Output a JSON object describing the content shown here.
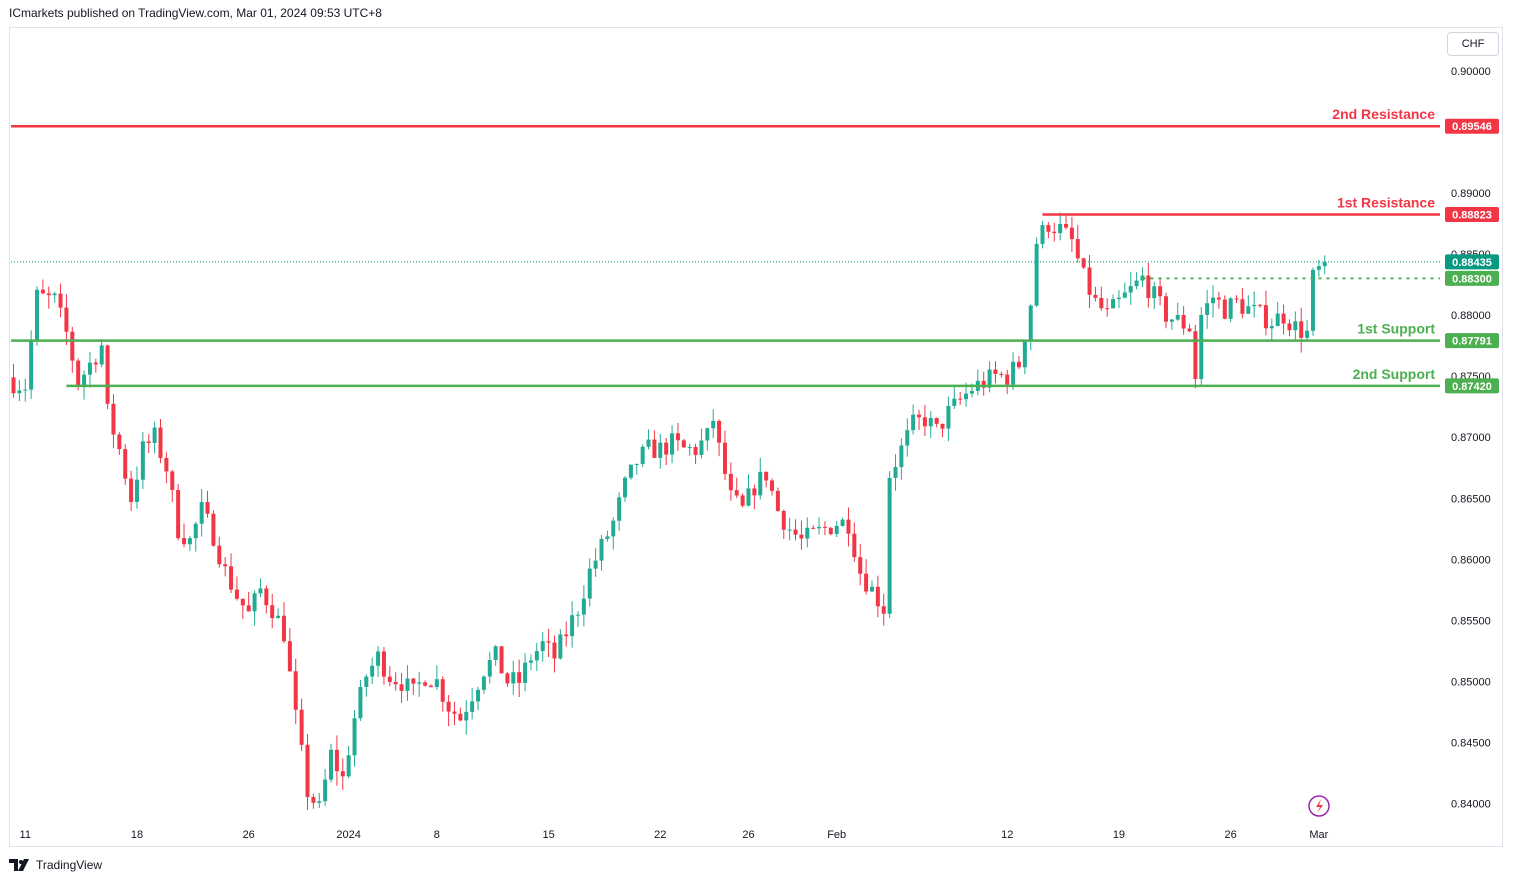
{
  "header": {
    "text": "ICmarkets published on TradingView.com, Mar 01, 2024 09:53 UTC+8"
  },
  "currency": "CHF",
  "footer": {
    "brand": "TradingView"
  },
  "colors": {
    "up": "#22ab94",
    "down": "#f23645",
    "resistance": "#f23645",
    "support": "#4caf50",
    "current": "#089981"
  },
  "chart_data": {
    "type": "candlestick",
    "x_ticks": [
      {
        "label": "11",
        "index": 2
      },
      {
        "label": "18",
        "index": 21
      },
      {
        "label": "26",
        "index": 40
      },
      {
        "label": "2024",
        "index": 57
      },
      {
        "label": "8",
        "index": 72
      },
      {
        "label": "15",
        "index": 91
      },
      {
        "label": "22",
        "index": 110
      },
      {
        "label": "26",
        "index": 125
      },
      {
        "label": "Feb",
        "index": 140
      },
      {
        "label": "12",
        "index": 169
      },
      {
        "label": "19",
        "index": 188
      },
      {
        "label": "26",
        "index": 207
      },
      {
        "label": "Mar",
        "index": 222
      }
    ],
    "y_ticks": [
      "0.90000",
      "0.89000",
      "0.88500",
      "0.88000",
      "0.87500",
      "0.87000",
      "0.86500",
      "0.86000",
      "0.85500",
      "0.85000",
      "0.84500",
      "0.84000"
    ],
    "y_range": [
      0.8385,
      0.9035
    ],
    "levels": [
      {
        "name": "2nd Resistance",
        "value": "0.89546",
        "kind": "resistance"
      },
      {
        "name": "1st Resistance",
        "value": "0.88823",
        "kind": "resistance"
      },
      {
        "name": "1st Support",
        "value": "0.87791",
        "kind": "support"
      },
      {
        "name": "2nd Support",
        "value": "0.87420",
        "kind": "support"
      }
    ],
    "current_price": "0.88435",
    "pivot_price": "0.88300",
    "anchors": [
      [
        0,
        0.8745
      ],
      [
        2,
        0.8742
      ],
      [
        4,
        0.8815
      ],
      [
        7,
        0.8812
      ],
      [
        9,
        0.8785
      ],
      [
        11,
        0.8745
      ],
      [
        13,
        0.876
      ],
      [
        15,
        0.8775
      ],
      [
        16,
        0.872
      ],
      [
        18,
        0.869
      ],
      [
        20,
        0.865
      ],
      [
        22,
        0.869
      ],
      [
        24,
        0.87
      ],
      [
        26,
        0.8675
      ],
      [
        28,
        0.8625
      ],
      [
        30,
        0.8615
      ],
      [
        32,
        0.864
      ],
      [
        34,
        0.862
      ],
      [
        36,
        0.859
      ],
      [
        38,
        0.857
      ],
      [
        40,
        0.8555
      ],
      [
        42,
        0.8575
      ],
      [
        44,
        0.856
      ],
      [
        46,
        0.854
      ],
      [
        48,
        0.847
      ],
      [
        50,
        0.841
      ],
      [
        52,
        0.8395
      ],
      [
        54,
        0.844
      ],
      [
        56,
        0.842
      ],
      [
        58,
        0.847
      ],
      [
        60,
        0.8505
      ],
      [
        62,
        0.852
      ],
      [
        64,
        0.8505
      ],
      [
        66,
        0.85
      ],
      [
        68,
        0.849
      ],
      [
        70,
        0.8505
      ],
      [
        72,
        0.85
      ],
      [
        74,
        0.848
      ],
      [
        76,
        0.847
      ],
      [
        78,
        0.849
      ],
      [
        80,
        0.851
      ],
      [
        82,
        0.852
      ],
      [
        84,
        0.85
      ],
      [
        86,
        0.85
      ],
      [
        88,
        0.852
      ],
      [
        90,
        0.853
      ],
      [
        92,
        0.852
      ],
      [
        94,
        0.854
      ],
      [
        96,
        0.856
      ],
      [
        98,
        0.859
      ],
      [
        100,
        0.861
      ],
      [
        102,
        0.863
      ],
      [
        104,
        0.866
      ],
      [
        106,
        0.868
      ],
      [
        108,
        0.869
      ],
      [
        110,
        0.869
      ],
      [
        112,
        0.8695
      ],
      [
        114,
        0.869
      ],
      [
        116,
        0.869
      ],
      [
        118,
        0.87
      ],
      [
        119,
        0.8715
      ],
      [
        120,
        0.869
      ],
      [
        122,
        0.865
      ],
      [
        124,
        0.864
      ],
      [
        126,
        0.866
      ],
      [
        128,
        0.867
      ],
      [
        130,
        0.864
      ],
      [
        132,
        0.8625
      ],
      [
        134,
        0.8615
      ],
      [
        136,
        0.862
      ],
      [
        138,
        0.8625
      ],
      [
        140,
        0.863
      ],
      [
        142,
        0.863
      ],
      [
        144,
        0.859
      ],
      [
        146,
        0.8575
      ],
      [
        148,
        0.856
      ],
      [
        149,
        0.867
      ],
      [
        151,
        0.869
      ],
      [
        153,
        0.871
      ],
      [
        155,
        0.8715
      ],
      [
        157,
        0.8705
      ],
      [
        159,
        0.872
      ],
      [
        161,
        0.873
      ],
      [
        163,
        0.874
      ],
      [
        165,
        0.8745
      ],
      [
        167,
        0.875
      ],
      [
        169,
        0.875
      ],
      [
        171,
        0.876
      ],
      [
        173,
        0.881
      ],
      [
        174,
        0.886
      ],
      [
        176,
        0.8875
      ],
      [
        178,
        0.887
      ],
      [
        180,
        0.886
      ],
      [
        182,
        0.883
      ],
      [
        184,
        0.881
      ],
      [
        186,
        0.88
      ],
      [
        188,
        0.881
      ],
      [
        190,
        0.882
      ],
      [
        192,
        0.883
      ],
      [
        194,
        0.8815
      ],
      [
        196,
        0.88
      ],
      [
        198,
        0.8795
      ],
      [
        200,
        0.879
      ],
      [
        201,
        0.875
      ],
      [
        202,
        0.88
      ],
      [
        204,
        0.8815
      ],
      [
        206,
        0.8805
      ],
      [
        208,
        0.881
      ],
      [
        210,
        0.8805
      ],
      [
        212,
        0.88
      ],
      [
        214,
        0.8795
      ],
      [
        216,
        0.88
      ],
      [
        218,
        0.879
      ],
      [
        220,
        0.8785
      ],
      [
        221,
        0.883
      ],
      [
        223,
        0.8843
      ]
    ],
    "count": 224
  }
}
